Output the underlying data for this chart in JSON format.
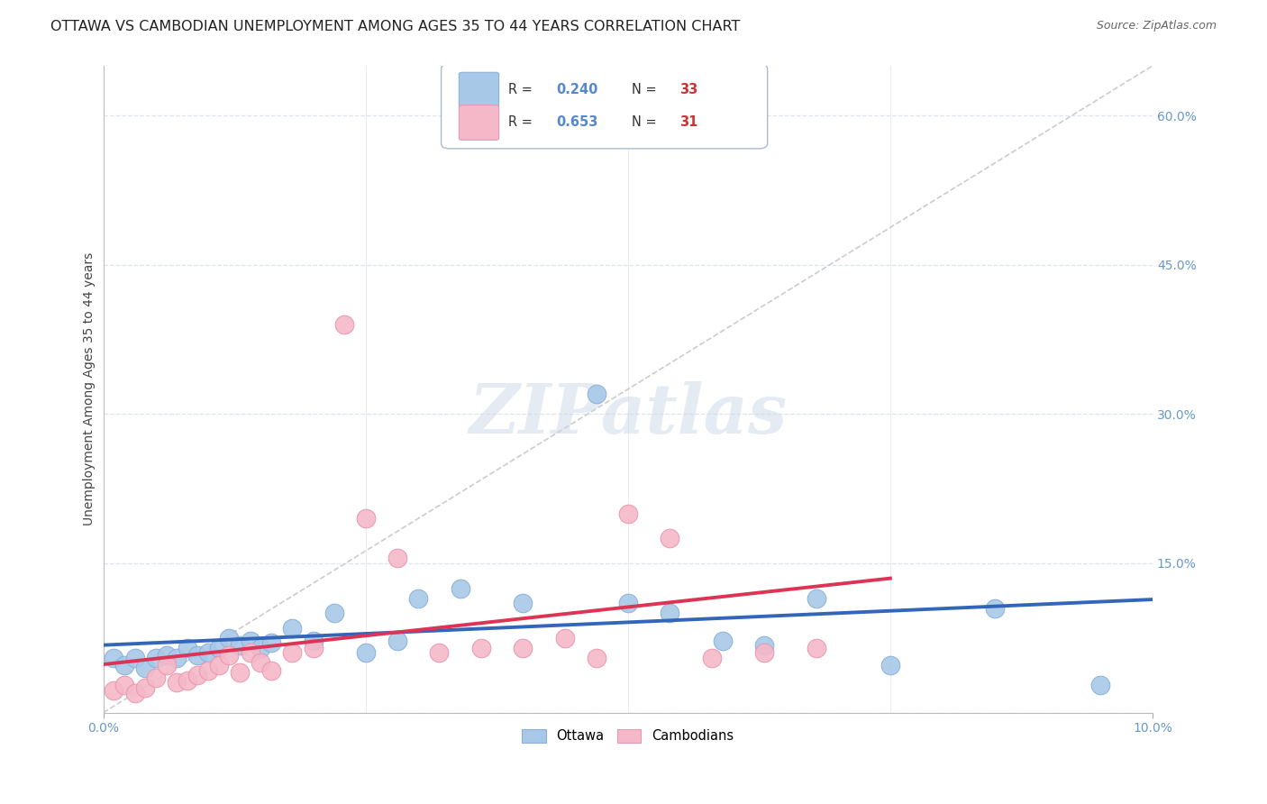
{
  "title": "OTTAWA VS CAMBODIAN UNEMPLOYMENT AMONG AGES 35 TO 44 YEARS CORRELATION CHART",
  "source": "Source: ZipAtlas.com",
  "ylabel": "Unemployment Among Ages 35 to 44 years",
  "xlim": [
    0.0,
    0.1
  ],
  "ylim": [
    0.0,
    0.65
  ],
  "xticks": [
    0.0,
    0.1
  ],
  "xtick_labels": [
    "0.0%",
    "10.0%"
  ],
  "yticks": [
    0.0,
    0.15,
    0.3,
    0.45,
    0.6
  ],
  "ytick_labels_right": [
    "",
    "15.0%",
    "30.0%",
    "45.0%",
    "60.0%"
  ],
  "ottawa_color": "#a8c8e8",
  "ottawa_edge_color": "#a8c8e8",
  "cambodian_color": "#f5b8c8",
  "cambodian_edge_color": "#f5b8c8",
  "ottawa_line_color": "#3366bb",
  "cambodian_line_color": "#dd3355",
  "diagonal_color": "#cccccc",
  "watermark": "ZIPatlas",
  "ottawa_x": [
    0.001,
    0.002,
    0.003,
    0.004,
    0.005,
    0.006,
    0.007,
    0.008,
    0.009,
    0.01,
    0.011,
    0.012,
    0.013,
    0.014,
    0.015,
    0.016,
    0.018,
    0.02,
    0.022,
    0.025,
    0.028,
    0.03,
    0.034,
    0.04,
    0.047,
    0.05,
    0.054,
    0.059,
    0.063,
    0.068,
    0.075,
    0.085,
    0.095
  ],
  "ottawa_y": [
    0.055,
    0.048,
    0.055,
    0.045,
    0.055,
    0.058,
    0.055,
    0.065,
    0.058,
    0.06,
    0.065,
    0.075,
    0.068,
    0.072,
    0.065,
    0.07,
    0.085,
    0.072,
    0.1,
    0.06,
    0.072,
    0.115,
    0.125,
    0.11,
    0.32,
    0.11,
    0.1,
    0.072,
    0.068,
    0.115,
    0.048,
    0.105,
    0.028
  ],
  "cambodian_x": [
    0.001,
    0.002,
    0.003,
    0.004,
    0.005,
    0.006,
    0.007,
    0.008,
    0.009,
    0.01,
    0.011,
    0.012,
    0.013,
    0.014,
    0.015,
    0.016,
    0.018,
    0.02,
    0.023,
    0.025,
    0.028,
    0.032,
    0.036,
    0.04,
    0.044,
    0.047,
    0.05,
    0.054,
    0.058,
    0.063,
    0.068
  ],
  "cambodian_y": [
    0.022,
    0.028,
    0.02,
    0.025,
    0.035,
    0.048,
    0.03,
    0.032,
    0.038,
    0.042,
    0.048,
    0.058,
    0.04,
    0.06,
    0.05,
    0.042,
    0.06,
    0.065,
    0.39,
    0.195,
    0.155,
    0.06,
    0.065,
    0.065,
    0.075,
    0.055,
    0.2,
    0.175,
    0.055,
    0.06,
    0.065
  ],
  "background_color": "#ffffff",
  "grid_color": "#dde4ee",
  "title_fontsize": 11.5,
  "axis_label_fontsize": 10,
  "tick_fontsize": 10,
  "legend_r_ottawa": "0.240",
  "legend_n_ottawa": "33",
  "legend_r_cambodian": "0.653",
  "legend_n_cambodian": "31"
}
